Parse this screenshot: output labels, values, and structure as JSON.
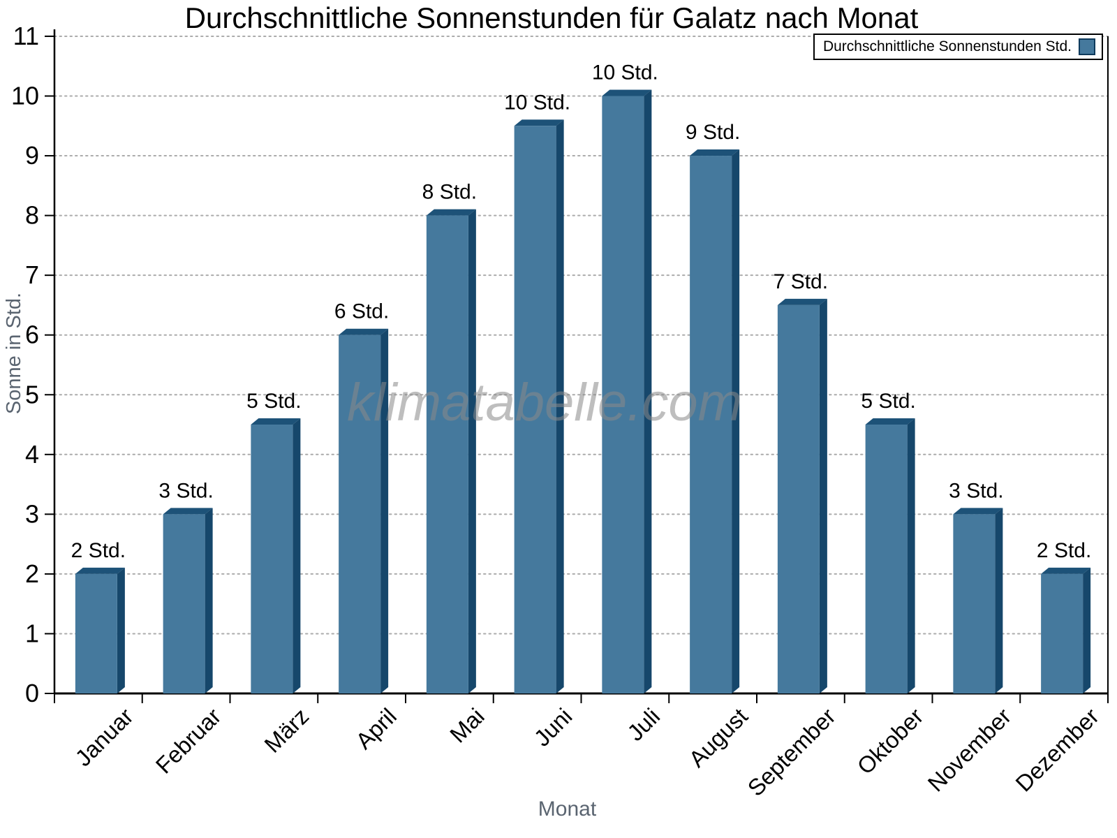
{
  "chart_data": {
    "type": "bar",
    "title": "Durchschnittliche Sonnenstunden für Galatz nach Monat",
    "xlabel": "Monat",
    "ylabel": "Sonne in Std.",
    "ylim": [
      0,
      11
    ],
    "yticks": [
      0,
      1,
      2,
      3,
      4,
      5,
      6,
      7,
      8,
      9,
      10,
      11
    ],
    "grid": "horizontal dotted, on",
    "legend_position": "top-right",
    "categories": [
      "Januar",
      "Februar",
      "März",
      "April",
      "Mai",
      "Juni",
      "Juli",
      "August",
      "September",
      "Oktober",
      "November",
      "Dezember"
    ],
    "values": [
      2,
      3,
      4.5,
      6,
      8,
      9.5,
      10,
      9,
      6.5,
      4.5,
      3,
      2
    ],
    "bar_labels": [
      "2 Std.",
      "3 Std.",
      "5 Std.",
      "6 Std.",
      "8 Std.",
      "10 Std.",
      "10 Std.",
      "9 Std.",
      "7 Std.",
      "5 Std.",
      "3 Std.",
      "2 Std."
    ],
    "legend_label": "Durchschnittliche Sonnenstunden Std.",
    "colors": {
      "bar_face": "#45799D",
      "bar_top": "#1D5278",
      "bar_side": "#16476B",
      "grid": "#ABABAB",
      "axis": "#000000",
      "muted_text": "#5A6470",
      "watermark": "#8A8A8A"
    }
  },
  "watermark": {
    "text": "klimatabelle.com"
  }
}
